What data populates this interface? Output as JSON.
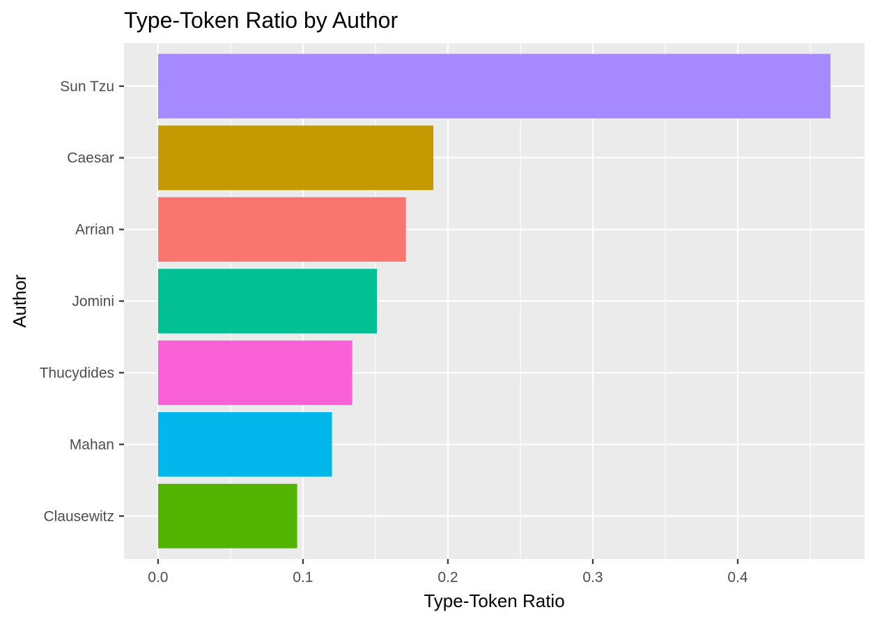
{
  "chart_data": {
    "type": "bar",
    "orientation": "horizontal",
    "title": "Type-Token Ratio by Author",
    "xlabel": "Type-Token Ratio",
    "ylabel": "Author",
    "categories": [
      "Sun Tzu",
      "Caesar",
      "Arrian",
      "Jomini",
      "Thucydides",
      "Mahan",
      "Clausewitz"
    ],
    "values": [
      0.464,
      0.19,
      0.171,
      0.151,
      0.134,
      0.12,
      0.096
    ],
    "colors": [
      "#A58AFF",
      "#C49A00",
      "#F8766D",
      "#00C094",
      "#FB61D7",
      "#00B6EB",
      "#53B400"
    ],
    "xlim": [
      -0.0235,
      0.4875
    ],
    "xticks": [
      0.0,
      0.1,
      0.2,
      0.3,
      0.4
    ],
    "xtick_labels": [
      "0.0",
      "0.1",
      "0.2",
      "0.3",
      "0.4"
    ],
    "grid": true,
    "legend": "none",
    "panel_background": "#EBEBEB",
    "gridline_color": "#FFFFFF",
    "tick_label_color": "#4D4D4D",
    "tick_color": "#333333"
  }
}
